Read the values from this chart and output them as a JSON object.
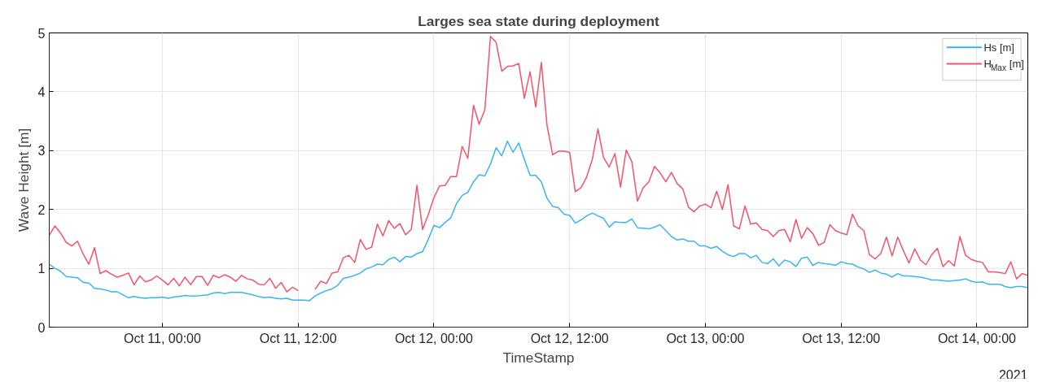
{
  "chart_data": {
    "type": "line",
    "title": "Larges sea state during deployment",
    "xlabel": "TimeStamp",
    "ylabel": "Wave Height [m]",
    "annotations": [
      "2021"
    ],
    "x": [
      "2021-10-10T14:00",
      "2021-10-10T14:30",
      "2021-10-10T15:00",
      "2021-10-10T15:30",
      "2021-10-10T16:00",
      "2021-10-10T16:30",
      "2021-10-10T17:00",
      "2021-10-10T17:30",
      "2021-10-10T18:00",
      "2021-10-10T18:30",
      "2021-10-10T19:00",
      "2021-10-10T19:30",
      "2021-10-10T20:00",
      "2021-10-10T20:30",
      "2021-10-10T21:00",
      "2021-10-10T21:30",
      "2021-10-10T22:00",
      "2021-10-10T22:30",
      "2021-10-10T23:00",
      "2021-10-10T23:30",
      "2021-10-11T00:00",
      "2021-10-11T00:30",
      "2021-10-11T01:00",
      "2021-10-11T01:30",
      "2021-10-11T02:00",
      "2021-10-11T02:30",
      "2021-10-11T03:00",
      "2021-10-11T03:30",
      "2021-10-11T04:00",
      "2021-10-11T04:30",
      "2021-10-11T05:00",
      "2021-10-11T05:30",
      "2021-10-11T06:00",
      "2021-10-11T06:30",
      "2021-10-11T07:00",
      "2021-10-11T07:30",
      "2021-10-11T08:00",
      "2021-10-11T08:30",
      "2021-10-11T09:00",
      "2021-10-11T09:30",
      "2021-10-11T10:00",
      "2021-10-11T10:30",
      "2021-10-11T11:00",
      "2021-10-11T11:30",
      "2021-10-11T12:00",
      "2021-10-11T12:30",
      "2021-10-11T13:00",
      "2021-10-11T13:30",
      "2021-10-11T14:00",
      "2021-10-11T14:30",
      "2021-10-11T15:00",
      "2021-10-11T15:30",
      "2021-10-11T16:00",
      "2021-10-11T16:30",
      "2021-10-11T17:00",
      "2021-10-11T17:30",
      "2021-10-11T18:00",
      "2021-10-11T18:30",
      "2021-10-11T19:00",
      "2021-10-11T19:30",
      "2021-10-11T20:00",
      "2021-10-11T20:30",
      "2021-10-11T21:00",
      "2021-10-11T21:30",
      "2021-10-11T22:00",
      "2021-10-11T22:30",
      "2021-10-11T23:00",
      "2021-10-11T23:30",
      "2021-10-12T00:00",
      "2021-10-12T00:30",
      "2021-10-12T01:00",
      "2021-10-12T01:30",
      "2021-10-12T02:00",
      "2021-10-12T02:30",
      "2021-10-12T03:00",
      "2021-10-12T03:30",
      "2021-10-12T04:00",
      "2021-10-12T04:30",
      "2021-10-12T05:00",
      "2021-10-12T05:30",
      "2021-10-12T06:00",
      "2021-10-12T06:30",
      "2021-10-12T07:00",
      "2021-10-12T07:30",
      "2021-10-12T08:00",
      "2021-10-12T08:30",
      "2021-10-12T09:00",
      "2021-10-12T09:30",
      "2021-10-12T10:00",
      "2021-10-12T10:30",
      "2021-10-12T11:00",
      "2021-10-12T11:30",
      "2021-10-12T12:00",
      "2021-10-12T12:30",
      "2021-10-12T13:00",
      "2021-10-12T13:30",
      "2021-10-12T14:00",
      "2021-10-12T14:30",
      "2021-10-12T15:00",
      "2021-10-12T15:30",
      "2021-10-12T16:00",
      "2021-10-12T16:30",
      "2021-10-12T17:00",
      "2021-10-12T17:30",
      "2021-10-12T18:00",
      "2021-10-12T18:30",
      "2021-10-12T19:00",
      "2021-10-12T19:30",
      "2021-10-12T20:00",
      "2021-10-12T20:30",
      "2021-10-12T21:00",
      "2021-10-12T21:30",
      "2021-10-12T22:00",
      "2021-10-12T22:30",
      "2021-10-12T23:00",
      "2021-10-12T23:30",
      "2021-10-13T00:00",
      "2021-10-13T00:30",
      "2021-10-13T01:00",
      "2021-10-13T01:30",
      "2021-10-13T02:00",
      "2021-10-13T02:30",
      "2021-10-13T03:00",
      "2021-10-13T03:30",
      "2021-10-13T04:00",
      "2021-10-13T04:30",
      "2021-10-13T05:00",
      "2021-10-13T05:30",
      "2021-10-13T06:00",
      "2021-10-13T06:30",
      "2021-10-13T07:00",
      "2021-10-13T07:30",
      "2021-10-13T08:00",
      "2021-10-13T08:30",
      "2021-10-13T09:00",
      "2021-10-13T09:30",
      "2021-10-13T10:00",
      "2021-10-13T10:30",
      "2021-10-13T11:00",
      "2021-10-13T11:30",
      "2021-10-13T12:00",
      "2021-10-13T12:30",
      "2021-10-13T13:00",
      "2021-10-13T13:30",
      "2021-10-13T14:00",
      "2021-10-13T14:30",
      "2021-10-13T15:00",
      "2021-10-13T15:30",
      "2021-10-13T16:00",
      "2021-10-13T16:30",
      "2021-10-13T17:00",
      "2021-10-13T17:30",
      "2021-10-13T18:00",
      "2021-10-13T18:30",
      "2021-10-13T19:00",
      "2021-10-13T19:30",
      "2021-10-13T20:00",
      "2021-10-13T20:30",
      "2021-10-13T21:00",
      "2021-10-13T21:30",
      "2021-10-13T22:00",
      "2021-10-13T22:30",
      "2021-10-13T23:00",
      "2021-10-13T23:30",
      "2021-10-14T00:00",
      "2021-10-14T00:30",
      "2021-10-14T01:00",
      "2021-10-14T01:30",
      "2021-10-14T02:00",
      "2021-10-14T02:30",
      "2021-10-14T03:00",
      "2021-10-14T03:30",
      "2021-10-14T04:00",
      "2021-10-14T04:30"
    ],
    "xlim": [
      "2021-10-10T14:00",
      "2021-10-14T04:30"
    ],
    "xticks": [
      {
        "value": "2021-10-11T00:00",
        "label": "Oct 11, 00:00"
      },
      {
        "value": "2021-10-11T12:00",
        "label": "Oct 11, 12:00"
      },
      {
        "value": "2021-10-12T00:00",
        "label": "Oct 12, 00:00"
      },
      {
        "value": "2021-10-12T12:00",
        "label": "Oct 12, 12:00"
      },
      {
        "value": "2021-10-13T00:00",
        "label": "Oct 13, 00:00"
      },
      {
        "value": "2021-10-13T12:00",
        "label": "Oct 13, 12:00"
      },
      {
        "value": "2021-10-14T00:00",
        "label": "Oct 14, 00:00"
      }
    ],
    "ylim": [
      0,
      5
    ],
    "yticks": [
      0,
      1,
      2,
      3,
      4,
      5
    ],
    "grid": true,
    "legend": "top right",
    "line_style": "solid",
    "marker": "none",
    "series": [
      {
        "name": "Hs [m]",
        "color": "#38b6f0",
        "values": [
          1.07,
          1.0,
          0.95,
          0.86,
          0.85,
          0.84,
          0.76,
          0.75,
          0.66,
          0.65,
          0.63,
          0.6,
          0.6,
          0.55,
          0.5,
          0.52,
          0.5,
          0.49,
          0.5,
          0.5,
          0.51,
          0.49,
          0.51,
          0.52,
          0.54,
          0.53,
          0.53,
          0.54,
          0.55,
          0.58,
          0.59,
          0.57,
          0.59,
          0.59,
          0.59,
          0.57,
          0.55,
          0.52,
          0.5,
          0.51,
          0.49,
          0.48,
          0.49,
          0.46,
          0.46,
          0.46,
          0.45,
          0.53,
          0.58,
          0.62,
          0.65,
          0.71,
          0.83,
          0.85,
          0.88,
          0.92,
          0.99,
          1.02,
          1.07,
          1.06,
          1.15,
          1.19,
          1.11,
          1.2,
          1.19,
          1.25,
          1.28,
          1.49,
          1.73,
          1.69,
          1.78,
          1.86,
          2.1,
          2.24,
          2.29,
          2.47,
          2.59,
          2.57,
          2.77,
          3.05,
          2.91,
          3.16,
          2.97,
          3.13,
          2.85,
          2.58,
          2.58,
          2.47,
          2.19,
          2.05,
          2.03,
          1.92,
          1.9,
          1.77,
          1.82,
          1.89,
          1.94,
          1.89,
          1.85,
          1.7,
          1.79,
          1.78,
          1.78,
          1.84,
          1.69,
          1.68,
          1.67,
          1.7,
          1.74,
          1.64,
          1.54,
          1.48,
          1.5,
          1.46,
          1.46,
          1.38,
          1.38,
          1.34,
          1.37,
          1.29,
          1.23,
          1.2,
          1.25,
          1.25,
          1.18,
          1.22,
          1.1,
          1.08,
          1.16,
          1.04,
          1.14,
          1.11,
          1.03,
          1.17,
          1.19,
          1.05,
          1.1,
          1.08,
          1.07,
          1.05,
          1.11,
          1.08,
          1.07,
          1.02,
          0.99,
          0.93,
          0.97,
          0.92,
          0.9,
          0.85,
          0.91,
          0.87,
          0.87,
          0.86,
          0.85,
          0.83,
          0.8,
          0.8,
          0.79,
          0.78,
          0.79,
          0.8,
          0.82,
          0.78,
          0.76,
          0.77,
          0.73,
          0.73,
          0.73,
          0.69,
          0.67,
          0.69,
          0.69,
          0.67
        ]
      },
      {
        "name": "H$_{Max}$ [m]",
        "color": "#f2546a",
        "values": [
          1.56,
          1.72,
          1.6,
          1.44,
          1.38,
          1.46,
          1.24,
          1.07,
          1.35,
          0.91,
          0.96,
          0.9,
          0.85,
          0.88,
          0.92,
          0.72,
          0.87,
          0.77,
          0.8,
          0.87,
          0.8,
          0.72,
          0.83,
          0.7,
          0.85,
          0.72,
          0.86,
          0.86,
          0.71,
          0.88,
          0.84,
          0.89,
          0.85,
          0.78,
          0.88,
          0.82,
          0.8,
          0.73,
          0.72,
          0.83,
          0.66,
          0.76,
          0.6,
          0.68,
          0.62,
          null,
          null,
          0.64,
          0.78,
          0.74,
          0.92,
          0.94,
          1.18,
          1.22,
          1.1,
          1.49,
          1.32,
          1.36,
          1.75,
          1.55,
          1.81,
          1.68,
          1.76,
          1.57,
          1.66,
          2.41,
          1.66,
          1.91,
          2.2,
          2.4,
          2.41,
          2.56,
          2.56,
          3.07,
          2.87,
          3.77,
          3.45,
          3.69,
          4.94,
          4.84,
          4.35,
          4.43,
          4.44,
          4.48,
          3.89,
          4.34,
          3.74,
          4.5,
          3.43,
          2.93,
          2.99,
          2.99,
          2.97,
          2.3,
          2.37,
          2.55,
          2.85,
          3.37,
          2.88,
          2.72,
          2.95,
          2.38,
          3.01,
          2.81,
          2.14,
          2.37,
          2.47,
          2.73,
          2.62,
          2.47,
          2.63,
          2.44,
          2.35,
          2.04,
          1.96,
          2.06,
          2.09,
          2.03,
          2.31,
          2.0,
          2.42,
          1.72,
          1.67,
          2.06,
          1.75,
          1.77,
          1.66,
          1.64,
          1.54,
          1.64,
          1.66,
          1.45,
          1.83,
          1.51,
          1.69,
          1.59,
          1.39,
          1.44,
          1.74,
          1.64,
          1.6,
          1.57,
          1.92,
          1.72,
          1.64,
          1.23,
          1.16,
          1.25,
          1.53,
          1.21,
          1.53,
          1.3,
          1.09,
          1.33,
          1.14,
          1.06,
          1.23,
          1.34,
          1.03,
          1.13,
          1.04,
          1.54,
          1.22,
          1.15,
          1.12,
          1.1,
          0.94,
          0.94,
          0.93,
          0.91,
          1.11,
          0.82,
          0.91,
          0.88
        ]
      }
    ]
  }
}
